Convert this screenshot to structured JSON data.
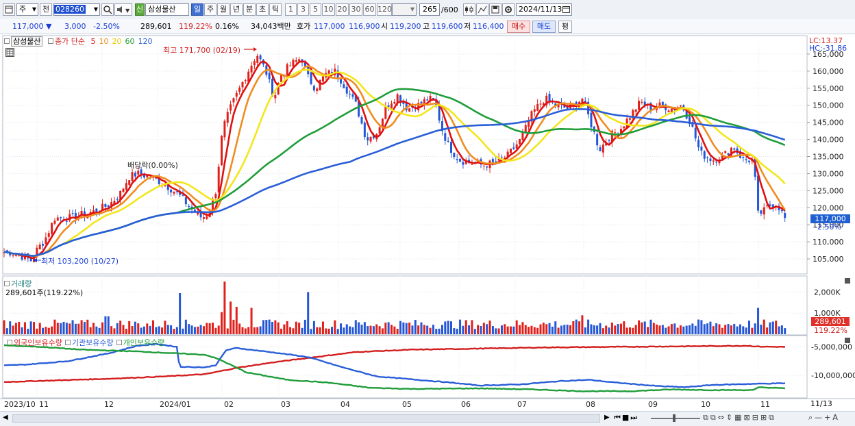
{
  "toolbar": {
    "period_sel": "주",
    "compare_sel": "전",
    "code": "028260",
    "market_badge": "신",
    "stock_name": "삼성물산",
    "period_tabs": [
      "일",
      "주",
      "월",
      "년",
      "분",
      "초",
      "틱"
    ],
    "active_period": "일",
    "intervals": [
      "1",
      "3",
      "5",
      "10",
      "20",
      "30",
      "60",
      "120"
    ],
    "count_value": "265",
    "count_max": "/600",
    "date": "2024/11/13"
  },
  "quote": {
    "price": "117,000",
    "down_arrow": "▼",
    "change": "3,000",
    "change_pct": "-2.50%",
    "volume": "289,601",
    "volume_ratio": "119.22%",
    "turnover_pct": "0.16%",
    "trade_value": "34,043백만",
    "ask_label": "호가",
    "ask1": "117,000",
    "ask2": "116,900",
    "open_label": "시",
    "open": "119,200",
    "high_label": "고",
    "high": "119,600",
    "low_label": "저",
    "low": "116,400",
    "buy_btn": "매수",
    "sell_btn": "매도",
    "eval_btn": "평"
  },
  "price_panel": {
    "name": "삼성물산",
    "ma_label": "종가 단순",
    "ma_periods": [
      {
        "label": "5",
        "color": "#e01010"
      },
      {
        "label": "10",
        "color": "#f08c1e"
      },
      {
        "label": "20",
        "color": "#f3e61a"
      },
      {
        "label": "60",
        "color": "#1f9d3a"
      },
      {
        "label": "120",
        "color": "#2a5ed8"
      }
    ],
    "high_annot": "최고 171,700 (02/19)",
    "low_annot": "최저 103,200 (10/27)",
    "div_annot": "배당락(0.00%)",
    "lc": "LC:13.37",
    "hc": "HC:-31.86",
    "yticks": [
      "165,000",
      "160,000",
      "155,000",
      "150,000",
      "145,000",
      "140,000",
      "135,000",
      "130,000",
      "125,000",
      "120,000",
      "115,000",
      "110,000",
      "105,000"
    ],
    "yticks_values": [
      165000,
      160000,
      155000,
      150000,
      145000,
      140000,
      135000,
      130000,
      125000,
      120000,
      115000,
      110000,
      105000
    ],
    "current_tag": "117,000",
    "current_pct": "-2.50%"
  },
  "volume_panel": {
    "title": "거래량",
    "info": "289,601주(119.22%)",
    "yticks": [
      "2,000K",
      "1,000K"
    ],
    "current_tag": "289,601",
    "current_pct": "119.22%"
  },
  "holding_panel": {
    "legend": [
      {
        "label": "외국인보유수량",
        "color": "#d31e1e"
      },
      {
        "label": "기관보유수량",
        "color": "#2a5ed8"
      },
      {
        "label": "개인보유수량",
        "color": "#1f9d3a"
      }
    ],
    "yticks": [
      "-5,000,000",
      "-10,000,000"
    ]
  },
  "xaxis": {
    "labels": [
      {
        "t": "2023/10",
        "x": 6
      },
      {
        "t": "11",
        "x": 57
      },
      {
        "t": "12",
        "x": 152
      },
      {
        "t": "2024/01",
        "x": 233
      },
      {
        "t": "02",
        "x": 327
      },
      {
        "t": "03",
        "x": 410
      },
      {
        "t": "04",
        "x": 497
      },
      {
        "t": "05",
        "x": 587
      },
      {
        "t": "06",
        "x": 673
      },
      {
        "t": "07",
        "x": 755
      },
      {
        "t": "08",
        "x": 855
      },
      {
        "t": "09",
        "x": 946
      },
      {
        "t": "10",
        "x": 1023
      },
      {
        "t": "11",
        "x": 1110
      }
    ],
    "last": "11/13"
  },
  "chart_data": {
    "type": "candlestick",
    "title": "삼성물산",
    "x_start": "2023/10",
    "x_end": "2024/11/13",
    "ylim": [
      101000,
      170000
    ],
    "anchors": [
      [
        0,
        107000
      ],
      [
        15,
        107000
      ],
      [
        30,
        106000
      ],
      [
        45,
        104500
      ],
      [
        55,
        108000
      ],
      [
        65,
        110500
      ],
      [
        80,
        117000
      ],
      [
        100,
        117000
      ],
      [
        120,
        118000
      ],
      [
        140,
        119000
      ],
      [
        160,
        121000
      ],
      [
        175,
        124000
      ],
      [
        188,
        129000
      ],
      [
        200,
        130000
      ],
      [
        220,
        129000
      ],
      [
        240,
        127000
      ],
      [
        260,
        124000
      ],
      [
        280,
        119500
      ],
      [
        295,
        117000
      ],
      [
        305,
        118500
      ],
      [
        315,
        125000
      ],
      [
        325,
        143000
      ],
      [
        338,
        150000
      ],
      [
        350,
        155000
      ],
      [
        362,
        160000
      ],
      [
        375,
        165000
      ],
      [
        388,
        160000
      ],
      [
        400,
        152000
      ],
      [
        410,
        159000
      ],
      [
        425,
        162000
      ],
      [
        440,
        164000
      ],
      [
        450,
        158000
      ],
      [
        460,
        155000
      ],
      [
        475,
        159000
      ],
      [
        490,
        160000
      ],
      [
        505,
        155000
      ],
      [
        520,
        150000
      ],
      [
        535,
        140000
      ],
      [
        550,
        142000
      ],
      [
        565,
        150000
      ],
      [
        580,
        153000
      ],
      [
        595,
        149000
      ],
      [
        610,
        150000
      ],
      [
        625,
        152000
      ],
      [
        635,
        151000
      ],
      [
        645,
        143000
      ],
      [
        655,
        138000
      ],
      [
        670,
        134000
      ],
      [
        690,
        133000
      ],
      [
        705,
        132500
      ],
      [
        720,
        133000
      ],
      [
        740,
        135000
      ],
      [
        760,
        140000
      ],
      [
        778,
        148000
      ],
      [
        795,
        152000
      ],
      [
        810,
        150000
      ],
      [
        830,
        149000
      ],
      [
        850,
        152000
      ],
      [
        862,
        145000
      ],
      [
        875,
        137000
      ],
      [
        890,
        141000
      ],
      [
        905,
        143000
      ],
      [
        920,
        147000
      ],
      [
        935,
        151000
      ],
      [
        950,
        149000
      ],
      [
        965,
        150000
      ],
      [
        980,
        149000
      ],
      [
        995,
        150000
      ],
      [
        1008,
        145000
      ],
      [
        1022,
        136000
      ],
      [
        1040,
        134000
      ],
      [
        1055,
        135000
      ],
      [
        1070,
        138000
      ],
      [
        1085,
        134000
      ],
      [
        1095,
        134000
      ],
      [
        1100,
        134000
      ],
      [
        1106,
        118000
      ],
      [
        1115,
        119000
      ],
      [
        1125,
        121000
      ],
      [
        1135,
        121000
      ],
      [
        1145,
        117000
      ]
    ],
    "ma_series": [
      {
        "name": "5",
        "color": "#e01010",
        "offset": 4
      },
      {
        "name": "10",
        "color": "#f08c1e",
        "offset": 9
      },
      {
        "name": "20",
        "color": "#f3e61a",
        "offset": 19
      },
      {
        "name": "60",
        "color": "#1f9d3a",
        "offset": 58
      },
      {
        "name": "120",
        "color": "#2a5ed8",
        "offset": 116
      }
    ],
    "holdings": {
      "foreign": [
        [
          0,
          -11200000
        ],
        [
          80,
          -10900000
        ],
        [
          160,
          -10600000
        ],
        [
          240,
          -10200000
        ],
        [
          300,
          -9800000
        ],
        [
          345,
          -8700000
        ],
        [
          400,
          -7700000
        ],
        [
          460,
          -6800000
        ],
        [
          520,
          -5900000
        ],
        [
          600,
          -5500000
        ],
        [
          700,
          -5300000
        ],
        [
          800,
          -5100000
        ],
        [
          900,
          -5000000
        ],
        [
          1000,
          -4900000
        ],
        [
          1090,
          -4800000
        ],
        [
          1108,
          -4950000
        ],
        [
          1145,
          -5000000
        ]
      ],
      "institution": [
        [
          0,
          -8300000
        ],
        [
          40,
          -8100000
        ],
        [
          100,
          -7500000
        ],
        [
          160,
          -6100000
        ],
        [
          200,
          -4800000
        ],
        [
          230,
          -4500000
        ],
        [
          258,
          -5000000
        ],
        [
          262,
          -8500000
        ],
        [
          300,
          -8600000
        ],
        [
          315,
          -8200000
        ],
        [
          330,
          -5600000
        ],
        [
          345,
          -5200000
        ],
        [
          400,
          -6000000
        ],
        [
          450,
          -6800000
        ],
        [
          500,
          -8600000
        ],
        [
          550,
          -10200000
        ],
        [
          600,
          -10700000
        ],
        [
          650,
          -11200000
        ],
        [
          700,
          -11800000
        ],
        [
          760,
          -11600000
        ],
        [
          820,
          -11000000
        ],
        [
          860,
          -10800000
        ],
        [
          900,
          -11300000
        ],
        [
          960,
          -11900000
        ],
        [
          1000,
          -12100000
        ],
        [
          1040,
          -11700000
        ],
        [
          1100,
          -11500000
        ],
        [
          1145,
          -11400000
        ]
      ],
      "individual": [
        [
          0,
          -4700000
        ],
        [
          60,
          -5000000
        ],
        [
          120,
          -5500000
        ],
        [
          200,
          -5800000
        ],
        [
          300,
          -6400000
        ],
        [
          320,
          -7200000
        ],
        [
          360,
          -9500000
        ],
        [
          420,
          -10800000
        ],
        [
          480,
          -11300000
        ],
        [
          540,
          -12200000
        ],
        [
          600,
          -12400000
        ],
        [
          700,
          -12300000
        ],
        [
          780,
          -12500000
        ],
        [
          850,
          -12800000
        ],
        [
          920,
          -12800000
        ],
        [
          980,
          -12500000
        ],
        [
          1040,
          -12600000
        ],
        [
          1100,
          -12600000
        ],
        [
          1108,
          -12100000
        ],
        [
          1145,
          -12300000
        ]
      ]
    },
    "holdings_ylim": [
      -13500000,
      -3500000
    ]
  }
}
